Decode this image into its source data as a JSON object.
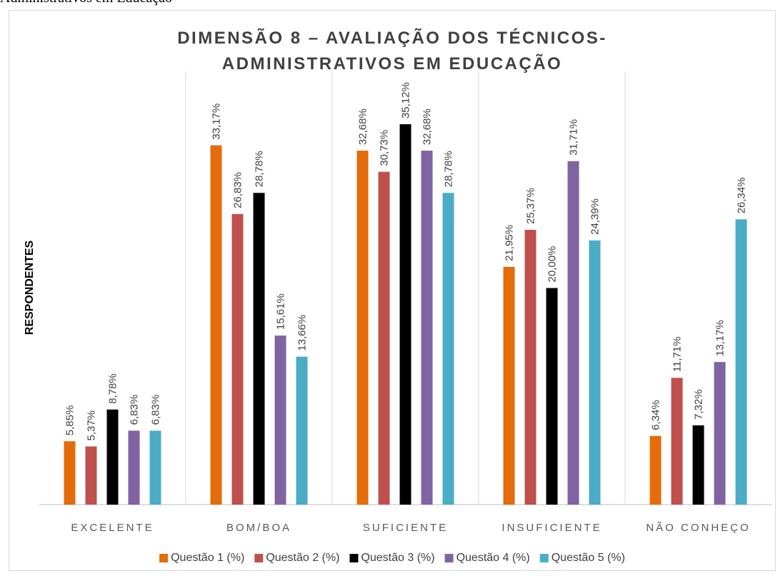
{
  "caption": "Administrativos em Educação",
  "chart_data": {
    "type": "bar",
    "title": "DIMENSÃO 8 – AVALIAÇÃO DOS TÉCNICOS-ADMINISTRATIVOS EM EDUCAÇÃO",
    "ylabel": "RESPONDENTES",
    "categories": [
      "EXCELENTE",
      "BOM/BOA",
      "SUFICIENTE",
      "INSUFICIENTE",
      "NÃO CONHEÇO"
    ],
    "ylim": [
      0,
      40
    ],
    "legend": "bottom",
    "series": [
      {
        "name": "Questão 1 (%)",
        "color": "#e46c0a",
        "values": [
          5.85,
          33.17,
          32.68,
          21.95,
          6.34
        ],
        "value_labels": [
          "5,85%",
          "33,17%",
          "32,68%",
          "21,95%",
          "6,34%"
        ]
      },
      {
        "name": "Questão 2 (%)",
        "color": "#c0504d",
        "values": [
          5.37,
          26.83,
          30.73,
          25.37,
          11.71
        ],
        "value_labels": [
          "5,37%",
          "26,83%",
          "30,73%",
          "25,37%",
          "11,71%"
        ]
      },
      {
        "name": "Questão 3 (%)",
        "color": "#000000",
        "values": [
          8.78,
          28.78,
          35.12,
          20.0,
          7.32
        ],
        "value_labels": [
          "8,78%",
          "28,78%",
          "35,12%",
          "20,00%",
          "7,32%"
        ]
      },
      {
        "name": "Questão 4 (%)",
        "color": "#8064a2",
        "values": [
          6.83,
          15.61,
          32.68,
          31.71,
          13.17
        ],
        "value_labels": [
          "6,83%",
          "15,61%",
          "32,68%",
          "31,71%",
          "13,17%"
        ]
      },
      {
        "name": "Questão 5 (%)",
        "color": "#4bacc6",
        "values": [
          6.83,
          13.66,
          28.78,
          24.39,
          26.34
        ],
        "value_labels": [
          "6,83%",
          "13,66%",
          "28,78%",
          "24,39%",
          "26,34%"
        ]
      }
    ]
  }
}
